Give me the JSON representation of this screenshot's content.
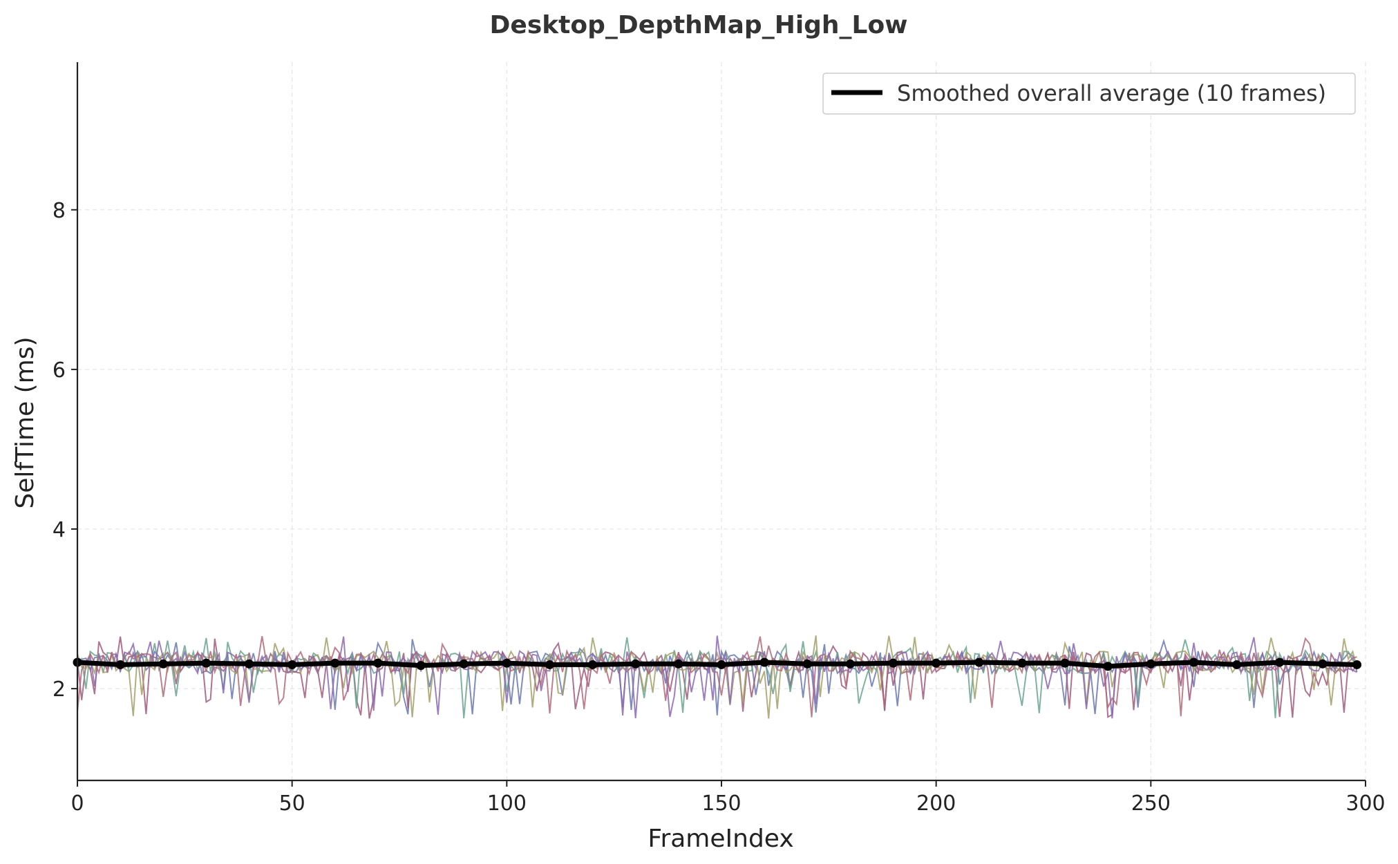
{
  "chart_data": {
    "type": "line",
    "title": "Desktop_DepthMap_High_Low",
    "xlabel": "FrameIndex",
    "ylabel": "SelfTime (ms)",
    "xlim": [
      0,
      300
    ],
    "ylim": [
      0.85,
      9.85
    ],
    "xticks": [
      0,
      50,
      100,
      150,
      200,
      250,
      300
    ],
    "yticks": [
      2,
      4,
      6,
      8
    ],
    "grid": true,
    "legend_position": "top-right",
    "legend": [
      "Smoothed overall average (10 frames)"
    ],
    "noise_series_colors": [
      "#6a78b0",
      "#a05a7a",
      "#6aa58e",
      "#a3a06a",
      "#8a6ab0",
      "#b06a7a"
    ],
    "smoothed": {
      "name": "Smoothed overall average (10 frames)",
      "color": "#000000",
      "x": [
        0,
        10,
        20,
        30,
        40,
        50,
        60,
        70,
        80,
        90,
        100,
        110,
        120,
        130,
        140,
        150,
        160,
        170,
        180,
        190,
        200,
        210,
        220,
        230,
        240,
        250,
        260,
        270,
        280,
        290,
        298
      ],
      "y": [
        2.33,
        2.3,
        2.31,
        2.32,
        2.31,
        2.3,
        2.32,
        2.32,
        2.29,
        2.31,
        2.32,
        2.3,
        2.3,
        2.31,
        2.31,
        2.3,
        2.33,
        2.31,
        2.31,
        2.32,
        2.32,
        2.33,
        2.32,
        2.32,
        2.28,
        2.31,
        2.33,
        2.3,
        2.33,
        2.31,
        2.3
      ]
    }
  }
}
